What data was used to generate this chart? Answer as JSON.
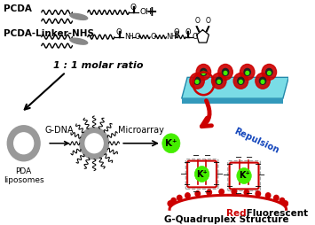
{
  "bg_color": "#ffffff",
  "pcda_label": "PCDA",
  "pcda_linker_label": "PCDA-Linker-NHS",
  "molar_ratio_label": "1 : 1 molar ratio",
  "pda_label": "PDA\nliposomes",
  "gdna_label": "G-DNA",
  "microarray_label": "Microarray",
  "kplus_label": "K⁺",
  "repulsion_label": "Repulsion",
  "gquad_label": "G-Quadruplex Structure",
  "red_word": "Red",
  "fluor_label": " Fluorescent",
  "red_color": "#cc0000",
  "green_color": "#44ee00",
  "cyan_color": "#7adce6",
  "blue_color": "#1144bb",
  "gray_color": "#999999",
  "dark_gray": "#555555"
}
